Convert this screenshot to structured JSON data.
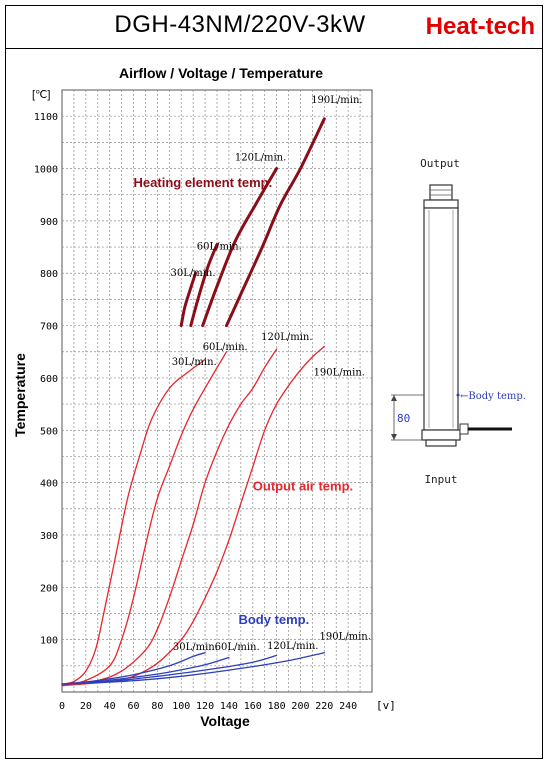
{
  "header": {
    "title": "DGH-43NM/220V-3kW",
    "brand": "Heat-tech"
  },
  "colors": {
    "heating": "#8b0d18",
    "output": "#e8242c",
    "body": "#2d3fbd",
    "grid": "#8c8c8c"
  },
  "chart_data": {
    "type": "line",
    "title": "Airflow / Voltage / Temperature",
    "xlabel": "Voltage",
    "ylabel": "Temperature",
    "x_unit": "[v]",
    "y_unit": "[℃]",
    "xlim": [
      0,
      260
    ],
    "ylim": [
      0,
      1150
    ],
    "x_ticks": [
      0,
      20,
      40,
      60,
      80,
      100,
      120,
      140,
      160,
      180,
      200,
      220,
      240
    ],
    "y_ticks": [
      100,
      200,
      300,
      400,
      500,
      600,
      700,
      800,
      900,
      1000,
      1100
    ],
    "group_labels": {
      "heating": "Heating element temp.",
      "output": "Output air temp.",
      "body": "Body temp."
    },
    "series": [
      {
        "group": "heating",
        "name": "30L/min.",
        "points": [
          [
            100,
            700
          ],
          [
            103,
            735
          ],
          [
            107,
            765
          ],
          [
            112,
            800
          ]
        ]
      },
      {
        "group": "heating",
        "name": "60L/min.",
        "points": [
          [
            108,
            700
          ],
          [
            114,
            750
          ],
          [
            122,
            810
          ],
          [
            130,
            855
          ]
        ]
      },
      {
        "group": "heating",
        "name": "120L/min.",
        "points": [
          [
            118,
            700
          ],
          [
            130,
            775
          ],
          [
            145,
            860
          ],
          [
            162,
            930
          ],
          [
            180,
            1000
          ]
        ]
      },
      {
        "group": "heating",
        "name": "190L/min.",
        "points": [
          [
            138,
            700
          ],
          [
            152,
            770
          ],
          [
            168,
            850
          ],
          [
            183,
            930
          ],
          [
            200,
            1000
          ],
          [
            220,
            1095
          ]
        ]
      },
      {
        "group": "output",
        "name": "30L/min.",
        "points": [
          [
            0,
            15
          ],
          [
            10,
            20
          ],
          [
            20,
            40
          ],
          [
            28,
            80
          ],
          [
            35,
            150
          ],
          [
            45,
            260
          ],
          [
            55,
            370
          ],
          [
            65,
            450
          ],
          [
            75,
            520
          ],
          [
            90,
            580
          ],
          [
            105,
            610
          ],
          [
            120,
            635
          ]
        ]
      },
      {
        "group": "output",
        "name": "60L/min.",
        "points": [
          [
            0,
            12
          ],
          [
            20,
            22
          ],
          [
            40,
            50
          ],
          [
            50,
            100
          ],
          [
            60,
            180
          ],
          [
            70,
            280
          ],
          [
            80,
            370
          ],
          [
            90,
            430
          ],
          [
            100,
            490
          ],
          [
            110,
            540
          ],
          [
            125,
            600
          ],
          [
            138,
            650
          ]
        ]
      },
      {
        "group": "output",
        "name": "120L/min.",
        "points": [
          [
            0,
            12
          ],
          [
            30,
            22
          ],
          [
            50,
            40
          ],
          [
            70,
            80
          ],
          [
            80,
            120
          ],
          [
            90,
            180
          ],
          [
            100,
            250
          ],
          [
            110,
            320
          ],
          [
            120,
            400
          ],
          [
            130,
            460
          ],
          [
            140,
            510
          ],
          [
            150,
            550
          ],
          [
            160,
            580
          ],
          [
            170,
            620
          ],
          [
            180,
            655
          ]
        ]
      },
      {
        "group": "output",
        "name": "190L/min.",
        "points": [
          [
            0,
            12
          ],
          [
            40,
            20
          ],
          [
            60,
            30
          ],
          [
            80,
            55
          ],
          [
            100,
            100
          ],
          [
            110,
            135
          ],
          [
            120,
            180
          ],
          [
            130,
            230
          ],
          [
            140,
            290
          ],
          [
            150,
            360
          ],
          [
            160,
            430
          ],
          [
            170,
            500
          ],
          [
            180,
            550
          ],
          [
            190,
            585
          ],
          [
            200,
            615
          ],
          [
            210,
            640
          ],
          [
            220,
            660
          ]
        ]
      },
      {
        "group": "body",
        "name": "30L/min.",
        "points": [
          [
            0,
            15
          ],
          [
            30,
            22
          ],
          [
            60,
            33
          ],
          [
            90,
            50
          ],
          [
            110,
            68
          ],
          [
            120,
            75
          ]
        ]
      },
      {
        "group": "body",
        "name": "60L/min.",
        "points": [
          [
            0,
            15
          ],
          [
            30,
            20
          ],
          [
            60,
            28
          ],
          [
            90,
            38
          ],
          [
            120,
            52
          ],
          [
            140,
            66
          ]
        ]
      },
      {
        "group": "body",
        "name": "120L/min.",
        "points": [
          [
            0,
            15
          ],
          [
            40,
            20
          ],
          [
            80,
            30
          ],
          [
            120,
            42
          ],
          [
            160,
            57
          ],
          [
            180,
            70
          ]
        ]
      },
      {
        "group": "body",
        "name": "190L/min.",
        "points": [
          [
            0,
            15
          ],
          [
            50,
            20
          ],
          [
            100,
            30
          ],
          [
            150,
            45
          ],
          [
            190,
            60
          ],
          [
            220,
            75
          ]
        ]
      }
    ],
    "series_label_anchor": {
      "heating": [
        [
          91,
          795
        ],
        [
          113,
          845
        ],
        [
          145,
          1015
        ],
        [
          209,
          1125
        ]
      ],
      "output": [
        [
          92,
          625
        ],
        [
          118,
          653
        ],
        [
          167,
          672
        ],
        [
          211,
          605
        ]
      ],
      "body": [
        [
          93,
          80
        ],
        [
          128,
          80
        ],
        [
          172,
          82
        ],
        [
          216,
          100
        ]
      ]
    },
    "group_label_anchor": {
      "heating": [
        60,
        965
      ],
      "output": [
        160,
        385
      ],
      "body": [
        148,
        130
      ]
    }
  },
  "diagram": {
    "top_label": "Output",
    "bottom_label": "Input",
    "body_temp_label": "←Body temp.",
    "dimension": "80"
  }
}
